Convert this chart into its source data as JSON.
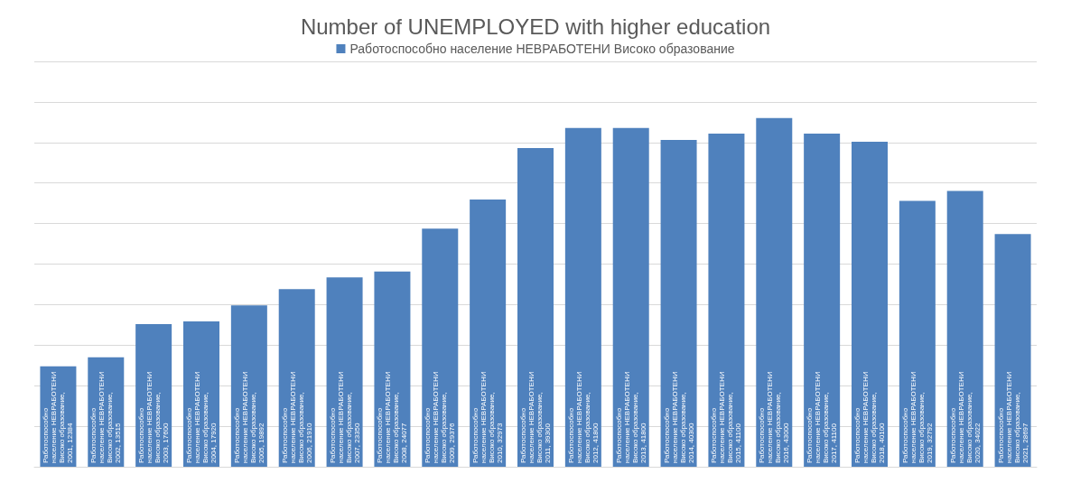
{
  "chart_data": {
    "type": "bar",
    "title": "Number of UNEMPLOYED with higher education",
    "categories": [
      null,
      null,
      null,
      null,
      null,
      null,
      null,
      null,
      null,
      null,
      null,
      null,
      null,
      null,
      null,
      null,
      null,
      null,
      null,
      null,
      null
    ],
    "series": [
      {
        "name": "Работоспособно население НЕВРАБОТЕНИ Високо образование",
        "color": "#4f81bd",
        "values": [
          12384,
          13515,
          17600,
          17920,
          19892,
          21910,
          23350,
          24077,
          29376,
          32973,
          39300,
          41800,
          41800,
          40300,
          41100,
          43000,
          41100,
          40100,
          32792,
          34022,
          28697
        ],
        "value_labels": [
          "Работоспособно население НЕВРАБОТЕНИ Високо образование, 2001, 12384",
          "Работоспособно население НЕВРАБОТЕНИ Високо образование, 2002, 13515",
          "Работоспособно население НЕВРАБОТЕНИ Високо образование, 2003, 17600",
          "Работоспособно население НЕВРАБОТЕНИ Високо образование, 2004, 17920",
          "Работоспособно население НЕВРАБОТЕНИ Високо образование, 2005, 19892",
          "Работоспособно население НЕВРАБОТЕНИ Високо образование, 2006, 21910",
          "Работоспособно население НЕВРАБОТЕНИ Високо образование, 2007, 23350",
          "Работоспособно население НЕВРАБОТЕНИ Високо образование, 2008, 24077",
          "Работоспособно население НЕВРАБОТЕНИ Високо образование, 2009, 29376",
          "Работоспособно население НЕВРАБОТЕНИ Високо образование, 2010, 32973",
          "Работоспособно население НЕВРАБОТЕНИ Високо образование, 2011, 39300",
          "Работоспособно население НЕВРАБОТЕНИ Високо образование, 2012, 41800",
          "Работоспособно население НЕВРАБОТЕНИ Високо образование, 2013, 41800",
          "Работоспособно население НЕВРАБОТЕНИ Високо образование, 2014, 40300",
          "Работоспособно население НЕВРАБОТЕНИ Високо образование, 2015, 41100",
          "Работоспособно население НЕВРАБОТЕНИ Високо образование, 2016, 43000",
          "Работоспособно население НЕВРАБОТЕНИ Високо образование, 2017, 41100",
          "Работоспособно население НЕВРАБОТЕНИ Високо образование, 2018, 40100",
          "Работоспособно население НЕВРАБОТЕНИ Високо образование, 2019, 32792",
          "Работоспособно население НЕВРАБОТЕНИ Високо образование, 2020, 34022",
          "Работоспособно население НЕВРАБОТЕНИ Високо образование, 2021, 28697"
        ]
      }
    ],
    "ylim": [
      0,
      50000
    ],
    "yticks": [
      {
        "value": 0,
        "label": null
      },
      {
        "value": 5000,
        "label": null
      },
      {
        "value": 10000,
        "label": null
      },
      {
        "value": 15000,
        "label": null
      },
      {
        "value": 20000,
        "label": null
      },
      {
        "value": 25000,
        "label": null
      },
      {
        "value": 30000,
        "label": null
      },
      {
        "value": 35000,
        "label": null
      },
      {
        "value": 40000,
        "label": null
      },
      {
        "value": 45000,
        "label": null
      },
      {
        "value": 50000,
        "label": null
      }
    ],
    "grid": "y",
    "legend": "top"
  }
}
